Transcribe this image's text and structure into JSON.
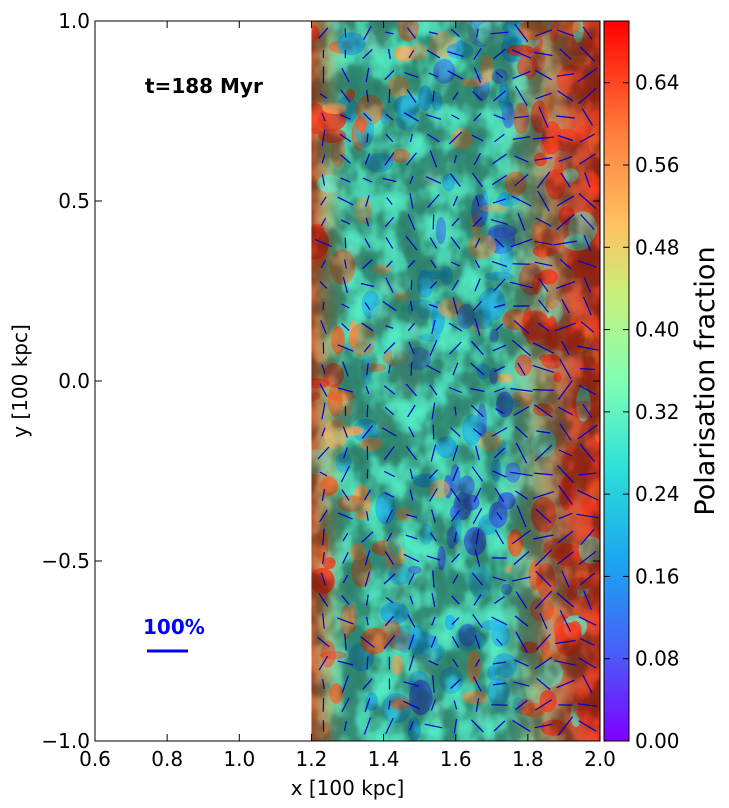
{
  "chart_data": {
    "type": "heatmap",
    "title": "",
    "xlabel": "x [100 kpc]",
    "ylabel": "y [100 kpc]",
    "xlim": [
      0.6,
      2.0
    ],
    "ylim": [
      -1.0,
      1.0
    ],
    "x_ticks": [
      0.6,
      0.8,
      1.0,
      1.2,
      1.4,
      1.6,
      1.8,
      2.0
    ],
    "x_tick_labels": [
      "0.6",
      "0.8",
      "1.0",
      "1.2",
      "1.4",
      "1.6",
      "1.8",
      "2.0"
    ],
    "y_ticks": [
      -1.0,
      -0.5,
      0.0,
      0.5,
      1.0
    ],
    "y_tick_labels": [
      "−1.0",
      "−0.5",
      "0.0",
      "0.5",
      "1.0"
    ],
    "annotation": "t=188 Myr",
    "annotation_color": "#000000",
    "scale_bar_label": "100%",
    "scale_bar_color": "#0000ff",
    "field_extent_x": [
      1.2,
      2.0
    ],
    "colormap": "rainbow",
    "vector_color": "#0000cc",
    "colorbar": {
      "label": "Polarisation fraction",
      "range": [
        0.0,
        0.7
      ],
      "ticks": [
        0.0,
        0.08,
        0.16,
        0.24,
        0.32,
        0.4,
        0.48,
        0.56,
        0.64
      ],
      "tick_labels": [
        "0.00",
        "0.08",
        "0.16",
        "0.24",
        "0.32",
        "0.40",
        "0.48",
        "0.56",
        "0.64"
      ]
    },
    "grid": false
  }
}
